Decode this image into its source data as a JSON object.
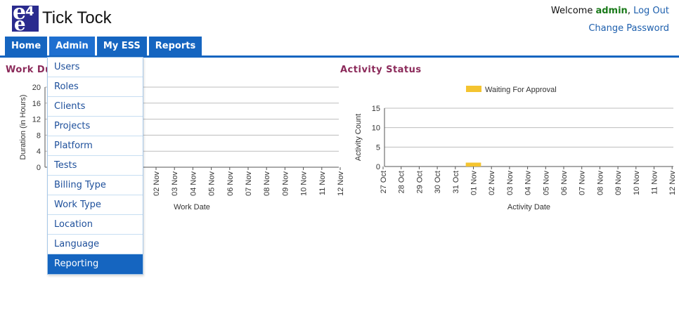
{
  "header": {
    "logo_e1": "e",
    "logo_num": "4",
    "logo_e2": "e",
    "app_name": "Tick Tock",
    "welcome_text": "Welcome",
    "username": "admin",
    "logout_label": "Log Out",
    "change_password_label": "Change Password"
  },
  "nav": {
    "items": [
      {
        "label": "Home"
      },
      {
        "label": "Admin"
      },
      {
        "label": "My ESS"
      },
      {
        "label": "Reports"
      }
    ]
  },
  "admin_menu": {
    "items": [
      "Users",
      "Roles",
      "Clients",
      "Projects",
      "Platform",
      "Tests",
      "Billing Type",
      "Work Type",
      "Location",
      "Language",
      "Reporting Hierarchy"
    ],
    "selected": "Reporting Hierarchy"
  },
  "colors": {
    "nav_blue": "#1565c0",
    "title_maroon": "#8b2a5a",
    "bar_yellow": "#f4c430"
  },
  "work_duration": {
    "title": "Work Du",
    "chart_data": {
      "type": "bar",
      "title": "Work Du",
      "ylabel": "Duration (in Hours)",
      "xlabel": "Work Date",
      "ylim": [
        0,
        20
      ],
      "yticks": [
        "20",
        "16",
        "12",
        "8",
        "4",
        "0"
      ],
      "categories": [
        "02 Nov",
        "03 Nov",
        "04 Nov",
        "05 Nov",
        "06 Nov",
        "07 Nov",
        "08 Nov",
        "09 Nov",
        "10 Nov",
        "11 Nov",
        "12 Nov"
      ],
      "values": [
        0,
        0,
        0,
        0,
        0,
        0,
        0,
        0,
        0,
        0,
        0
      ],
      "grid": true
    }
  },
  "activity_status": {
    "title": "Activity Status",
    "chart_data": {
      "type": "bar",
      "title": "Activity Status",
      "ylabel": "Activity Count",
      "xlabel": "Activity Date",
      "ylim": [
        0,
        15
      ],
      "yticks": [
        "15",
        "10",
        "5",
        "0"
      ],
      "legend_position": "top",
      "categories": [
        "27 Oct",
        "28 Oct",
        "29 Oct",
        "30 Oct",
        "31 Oct",
        "01 Nov",
        "02 Nov",
        "03 Nov",
        "04 Nov",
        "05 Nov",
        "06 Nov",
        "07 Nov",
        "08 Nov",
        "09 Nov",
        "10 Nov",
        "11 Nov",
        "12 Nov"
      ],
      "series": [
        {
          "name": "Waiting For Approval",
          "color": "#f4c430",
          "values": [
            0,
            0,
            0,
            0,
            0,
            1,
            0,
            0,
            0,
            0,
            0,
            0,
            0,
            0,
            0,
            0,
            0
          ]
        }
      ],
      "grid": true
    }
  }
}
